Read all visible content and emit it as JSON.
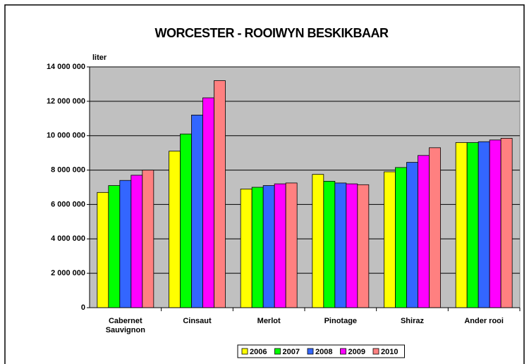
{
  "chart_data": {
    "type": "bar",
    "title": "WORCESTER - ROOIWYN BESKIKBAAR",
    "ylabel": "liter",
    "categories": [
      "Cabernet Sauvignon",
      "Cinsaut",
      "Merlot",
      "Pinotage",
      "Shiraz",
      "Ander rooi"
    ],
    "series": [
      {
        "name": "2006",
        "color": "#ffff00",
        "values": [
          6700000,
          9100000,
          6900000,
          7750000,
          7900000,
          9600000
        ]
      },
      {
        "name": "2007",
        "color": "#00ff00",
        "values": [
          7100000,
          10100000,
          7000000,
          7350000,
          8150000,
          9600000
        ]
      },
      {
        "name": "2008",
        "color": "#3366ff",
        "values": [
          7400000,
          11200000,
          7100000,
          7250000,
          8450000,
          9650000
        ]
      },
      {
        "name": "2009",
        "color": "#ff00ff",
        "values": [
          7700000,
          12200000,
          7200000,
          7200000,
          8850000,
          9750000
        ]
      },
      {
        "name": "2010",
        "color": "#ff8080",
        "values": [
          8000000,
          13200000,
          7250000,
          7150000,
          9300000,
          9850000
        ]
      }
    ],
    "ylim": [
      0,
      14000000
    ],
    "yticks": [
      0,
      {
        "value": 2000000,
        "label": "2 000 000"
      },
      {
        "value": 4000000,
        "label": "4 000 000"
      },
      {
        "value": 6000000,
        "label": "6 000 000"
      },
      {
        "value": 8000000,
        "label": "8 000 000"
      },
      {
        "value": 10000000,
        "label": "10 000 000"
      },
      {
        "value": 12000000,
        "label": "12 000 000"
      },
      {
        "value": 14000000,
        "label": "14 000 000"
      }
    ],
    "grid": true,
    "legend": "bottom"
  }
}
